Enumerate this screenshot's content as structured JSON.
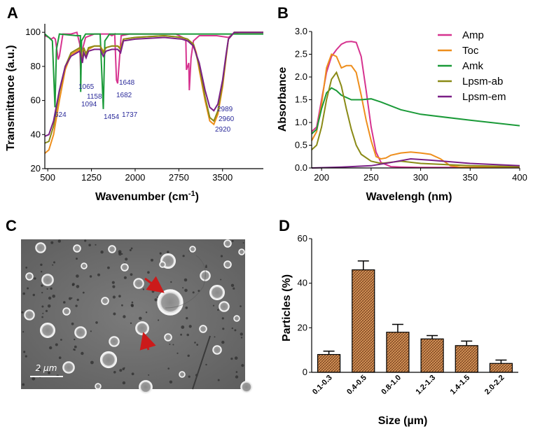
{
  "panels": {
    "a": "A",
    "b": "B",
    "c": "C",
    "d": "D"
  },
  "chart_data": [
    {
      "id": "A",
      "type": "line",
      "xlabel_main": "Wavenumber (cm",
      "xlabel_sup": "-1",
      "xlabel_end": ")",
      "ylabel": "Transmittance (a.u.)",
      "xlim": [
        450,
        4200
      ],
      "ylim": [
        20,
        105
      ],
      "x_ticks": [
        500,
        1250,
        2000,
        2750,
        3500
      ],
      "y_ticks": [
        20,
        40,
        60,
        80,
        100
      ],
      "peak_labels": [
        "624",
        "1065",
        "1094",
        "1158",
        "1454",
        "1648",
        "1682",
        "1737",
        "2920",
        "2960",
        "2989"
      ],
      "series": [
        {
          "name": "Amp",
          "color": "#d6338f",
          "x": [
            450,
            520,
            560,
            600,
            630,
            680,
            700,
            760,
            900,
            1000,
            1050,
            1065,
            1080,
            1150,
            1300,
            1400,
            1550,
            1600,
            1650,
            1680,
            1700,
            1760,
            1900,
            2100,
            2400,
            2700,
            2870,
            2880,
            2920,
            2930,
            2960,
            3000,
            3100,
            3400,
            3600,
            3680,
            3800,
            4200
          ],
          "y": [
            98,
            97,
            96,
            97,
            96,
            84,
            86,
            99,
            99,
            100,
            93,
            75,
            88,
            97,
            99,
            99,
            99,
            98,
            99,
            72,
            70,
            98,
            99,
            99,
            99,
            99,
            96,
            78,
            82,
            66,
            85,
            95,
            98,
            98,
            97,
            99,
            100,
            100
          ]
        },
        {
          "name": "Toc",
          "color": "#ee8e1c",
          "x": [
            450,
            520,
            600,
            700,
            800,
            900,
            1000,
            1050,
            1094,
            1120,
            1158,
            1200,
            1300,
            1400,
            1454,
            1500,
            1600,
            1700,
            1750,
            1800,
            2000,
            2500,
            2800,
            2900,
            3000,
            3050,
            3100,
            3200,
            3280,
            3350,
            3420,
            3500,
            3560,
            3600,
            3700,
            4200
          ],
          "y": [
            29,
            31,
            40,
            60,
            78,
            87,
            89,
            90,
            89,
            90,
            88,
            90,
            92,
            92,
            89,
            91,
            92,
            92,
            91,
            96,
            97,
            98,
            97,
            96,
            93,
            88,
            78,
            60,
            48,
            46,
            52,
            68,
            85,
            96,
            100,
            100
          ]
        },
        {
          "name": "Amk",
          "color": "#1a9a38",
          "x": [
            450,
            520,
            580,
            624,
            650,
            700,
            1000,
            1060,
            1065,
            1080,
            1150,
            1300,
            1400,
            1454,
            1480,
            1560,
            1700,
            2000,
            3000,
            4200
          ],
          "y": [
            99,
            97,
            95,
            56,
            90,
            99,
            98,
            98,
            65,
            95,
            99,
            99,
            99,
            55,
            95,
            99,
            99,
            99,
            99,
            99
          ]
        },
        {
          "name": "Lpsm-ab",
          "color": "#8a8a16",
          "x": [
            450,
            520,
            600,
            700,
            800,
            900,
            1000,
            1050,
            1094,
            1120,
            1158,
            1200,
            1300,
            1400,
            1454,
            1500,
            1600,
            1700,
            1750,
            1800,
            2000,
            2500,
            2800,
            2900,
            3000,
            3100,
            3200,
            3280,
            3350,
            3420,
            3500,
            3560,
            3600,
            3700,
            4200
          ],
          "y": [
            35,
            36,
            45,
            65,
            80,
            88,
            90,
            91,
            84,
            91,
            87,
            91,
            92,
            92,
            88,
            91,
            92,
            92,
            90,
            96,
            97,
            98,
            97,
            96,
            93,
            80,
            62,
            50,
            48,
            54,
            70,
            86,
            96,
            100,
            100
          ]
        },
        {
          "name": "Lpsm-em",
          "color": "#7a1f86",
          "x": [
            450,
            520,
            600,
            700,
            800,
            900,
            1000,
            1050,
            1094,
            1120,
            1158,
            1200,
            1300,
            1400,
            1454,
            1500,
            1600,
            1700,
            1750,
            1800,
            2000,
            2500,
            2800,
            2900,
            3000,
            3100,
            3200,
            3280,
            3350,
            3420,
            3500,
            3560,
            3600,
            3700,
            4200
          ],
          "y": [
            39,
            40,
            48,
            66,
            80,
            86,
            88,
            89,
            82,
            88,
            85,
            89,
            90,
            90,
            86,
            89,
            90,
            90,
            88,
            95,
            96,
            97,
            96,
            95,
            92,
            82,
            66,
            56,
            54,
            58,
            72,
            87,
            96,
            100,
            100
          ]
        }
      ]
    },
    {
      "id": "B",
      "type": "line",
      "xlabel": "Wavelengh (nm)",
      "ylabel": "Absorbance",
      "xlim": [
        190,
        400
      ],
      "ylim": [
        0,
        3.0
      ],
      "x_ticks": [
        200,
        250,
        300,
        350,
        400
      ],
      "y_ticks": [
        "0.0",
        "0.5",
        "1.0",
        "1.5",
        "2.0",
        "2.5",
        "3.0"
      ],
      "legend_position": "top-right",
      "series": [
        {
          "name": "Amp",
          "color": "#d6338f",
          "x": [
            190,
            195,
            200,
            205,
            210,
            215,
            220,
            225,
            230,
            235,
            240,
            245,
            250,
            255,
            260,
            270,
            280,
            300,
            400
          ],
          "y": [
            0.8,
            0.9,
            1.5,
            2.1,
            2.45,
            2.6,
            2.72,
            2.77,
            2.78,
            2.76,
            2.45,
            1.7,
            0.9,
            0.35,
            0.12,
            0.03,
            0.02,
            0.01,
            0.01
          ]
        },
        {
          "name": "Toc",
          "color": "#ee8e1c",
          "x": [
            190,
            195,
            200,
            205,
            210,
            215,
            220,
            225,
            230,
            235,
            240,
            245,
            250,
            255,
            260,
            265,
            270,
            280,
            290,
            300,
            310,
            320,
            330,
            340,
            400
          ],
          "y": [
            0.6,
            0.8,
            1.4,
            2.2,
            2.5,
            2.45,
            2.2,
            2.25,
            2.25,
            2.1,
            1.6,
            1.05,
            0.6,
            0.25,
            0.2,
            0.22,
            0.28,
            0.33,
            0.35,
            0.33,
            0.3,
            0.2,
            0.05,
            0.02,
            0.01
          ]
        },
        {
          "name": "Amk",
          "color": "#1a9a38",
          "x": [
            190,
            195,
            200,
            205,
            210,
            215,
            220,
            230,
            240,
            250,
            260,
            280,
            300,
            350,
            400
          ],
          "y": [
            0.75,
            0.85,
            1.3,
            1.65,
            1.76,
            1.7,
            1.6,
            1.5,
            1.5,
            1.52,
            1.45,
            1.28,
            1.18,
            1.05,
            0.93
          ]
        },
        {
          "name": "Lpsm-ab",
          "color": "#8a8a16",
          "x": [
            190,
            195,
            200,
            205,
            210,
            215,
            220,
            225,
            230,
            235,
            240,
            250,
            260,
            280,
            300,
            350,
            400
          ],
          "y": [
            0.4,
            0.5,
            0.9,
            1.5,
            1.95,
            2.1,
            1.8,
            1.3,
            0.85,
            0.5,
            0.3,
            0.15,
            0.1,
            0.15,
            0.1,
            0.05,
            0.03
          ]
        },
        {
          "name": "Lpsm-em",
          "color": "#7a1f86",
          "x": [
            190,
            220,
            250,
            270,
            290,
            310,
            350,
            400
          ],
          "y": [
            0.0,
            0.02,
            0.05,
            0.12,
            0.2,
            0.17,
            0.1,
            0.05
          ]
        }
      ]
    },
    {
      "id": "D",
      "type": "bar",
      "xlabel": "Size (µm)",
      "ylabel": "Particles (%)",
      "ylim": [
        0,
        60
      ],
      "y_ticks": [
        0,
        20,
        40,
        60
      ],
      "categories": [
        "0.1-0.3",
        "0.4-0.5",
        "0.8-1.0",
        "1.2-1.3",
        "1.4-1.5",
        "2.0-2.2"
      ],
      "values": [
        8,
        46,
        18,
        15,
        12,
        4
      ],
      "errors": [
        1.5,
        4,
        3.5,
        1.5,
        2,
        1.5
      ],
      "bar_color": "#c8844a"
    }
  ],
  "micrograph": {
    "scale_bar_label": "2 µm",
    "arrow_color": "#cc1a1a"
  }
}
